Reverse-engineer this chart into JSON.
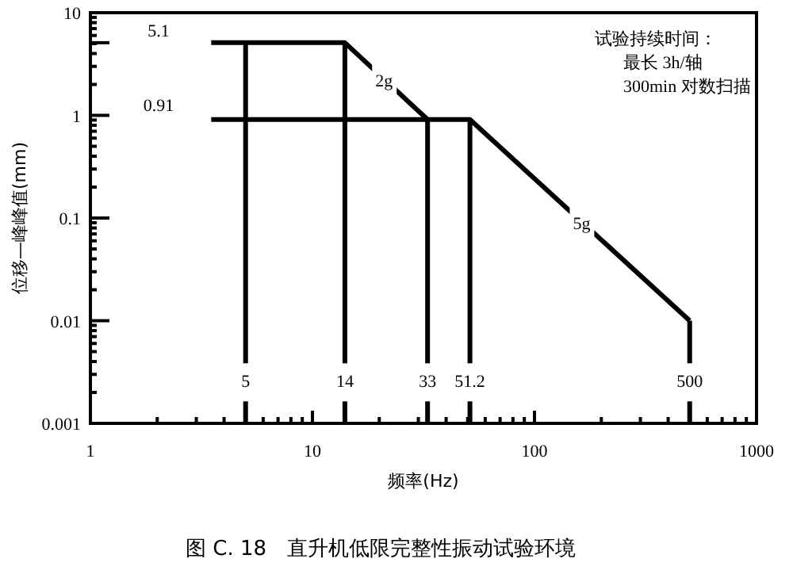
{
  "chart_data": {
    "type": "line",
    "title": "图 C. 18　直升机低限完整性振动试验环境",
    "xlabel": "频率(Hz)",
    "ylabel": "位移—峰峰值(mm)",
    "log": "xy",
    "grid": false,
    "marker": "none",
    "line_style": "solid",
    "xlim": [
      1,
      1000
    ],
    "ylim": [
      0.001,
      10
    ],
    "xticks": [
      1,
      10,
      100,
      1000
    ],
    "yticks": [
      0.001,
      0.01,
      0.1,
      1,
      {
        "value": 5.1,
        "label": null
      },
      10
    ],
    "series": [
      {
        "color": "#000000",
        "x": [
          3.5,
          14,
          33,
          51.2,
          500
        ],
        "values": [
          5.1,
          5.1,
          0.91,
          0.91,
          0.01
        ]
      },
      {
        "color": "#000000",
        "x": [
          3.5,
          33
        ],
        "values": [
          0.91,
          0.91
        ]
      },
      {
        "color": "#000000",
        "x": [
          5,
          5
        ],
        "values": [
          5.1,
          0.001
        ]
      },
      {
        "color": "#000000",
        "x": [
          14,
          14
        ],
        "values": [
          5.1,
          0.001
        ]
      },
      {
        "color": "#000000",
        "x": [
          33,
          33
        ],
        "values": [
          0.91,
          0.001
        ]
      },
      {
        "color": "#000000",
        "x": [
          51.2,
          51.2
        ],
        "values": [
          0.91,
          0.001
        ]
      },
      {
        "color": "#000000",
        "x": [
          500,
          500
        ],
        "values": [
          0.01,
          0.001
        ]
      }
    ],
    "annotations": [
      "5.1",
      "0.91",
      {
        "text": "2g",
        "x": 21,
        "y": 2.2
      },
      {
        "text": "5g",
        "x": 163,
        "y": 0.09
      },
      {
        "text": "5",
        "x": 5,
        "y": 0.0026
      },
      {
        "text": "14",
        "x": 14,
        "y": 0.0026
      },
      {
        "text": "33",
        "x": 33,
        "y": 0.0026
      },
      {
        "text": "51.2",
        "x": 51.2,
        "y": 0.0026
      },
      {
        "text": "500",
        "x": 500,
        "y": 0.0026
      },
      "试验持续时间：",
      "最长 3h/轴",
      "300min 对数扫描"
    ]
  }
}
